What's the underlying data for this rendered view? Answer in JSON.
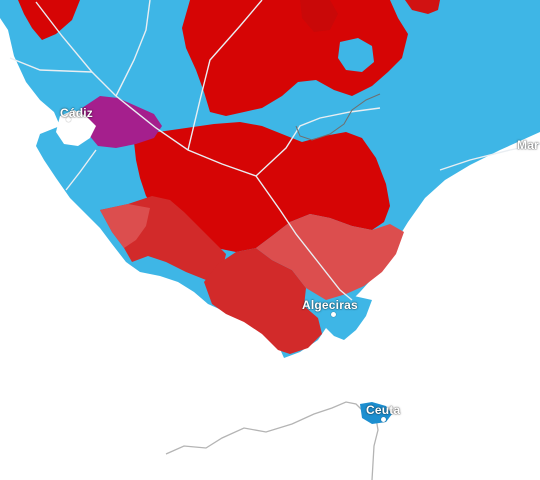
{
  "map": {
    "colors": {
      "sea": "#ffffff",
      "blue": "#3eb6e6",
      "blue_dark": "#1d8fd0",
      "red": "#d60505",
      "red_mid": "#d22a2a",
      "red_light": "#dc4e4e",
      "purple": "#a51f8d",
      "coast_grey": "#b4b4b4",
      "road": "#e9eef2",
      "border": "#8a8a8a"
    },
    "cities": [
      {
        "id": "cadiz",
        "name": "Cádiz"
      },
      {
        "id": "marbella",
        "name": "Mar"
      },
      {
        "id": "algeciras",
        "name": "Algeciras"
      },
      {
        "id": "ceuta",
        "name": "Ceuta"
      }
    ]
  }
}
